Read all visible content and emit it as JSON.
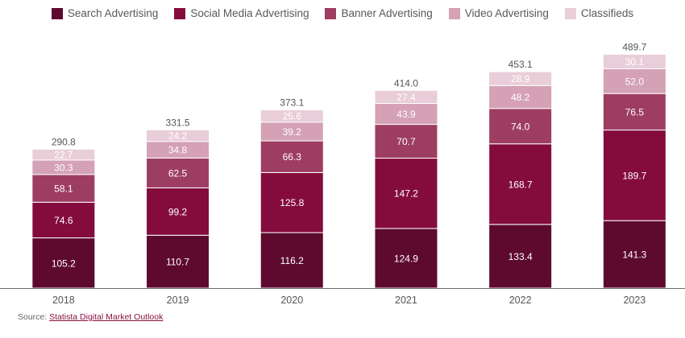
{
  "legend_items": [
    {
      "label": "Search Advertising",
      "color": "#5e0a2e"
    },
    {
      "label": "Social Media Advertising",
      "color": "#840c3c"
    },
    {
      "label": "Banner Advertising",
      "color": "#9e3d62"
    },
    {
      "label": "Video Advertising",
      "color": "#d4a1b5"
    },
    {
      "label": "Classifieds",
      "color": "#e9cdd8"
    }
  ],
  "source": {
    "prefix": "Source: ",
    "link_text": "Statista Digital Market Outlook"
  },
  "chart_data": {
    "type": "bar",
    "stacked": true,
    "categories": [
      "2018",
      "2019",
      "2020",
      "2021",
      "2022",
      "2023"
    ],
    "series": [
      {
        "name": "Search Advertising",
        "color": "#5e0a2e",
        "values": [
          105.2,
          110.7,
          116.2,
          124.9,
          133.4,
          141.3
        ]
      },
      {
        "name": "Social Media Advertising",
        "color": "#840c3c",
        "values": [
          74.6,
          99.2,
          125.8,
          147.2,
          168.7,
          189.7
        ]
      },
      {
        "name": "Banner Advertising",
        "color": "#9e3d62",
        "values": [
          58.1,
          62.5,
          66.3,
          70.7,
          74.0,
          76.5
        ]
      },
      {
        "name": "Video Advertising",
        "color": "#d4a1b5",
        "values": [
          30.3,
          34.8,
          39.2,
          43.9,
          48.2,
          52.0
        ]
      },
      {
        "name": "Classifieds",
        "color": "#e9cdd8",
        "values": [
          22.7,
          24.2,
          25.6,
          27.4,
          28.9,
          30.1
        ]
      }
    ],
    "totals": [
      "290.8",
      "331.5",
      "373.1",
      "414.0",
      "453.1",
      "489.7"
    ],
    "ylim": [
      0,
      500
    ],
    "grid": false,
    "legend_position": "top"
  }
}
